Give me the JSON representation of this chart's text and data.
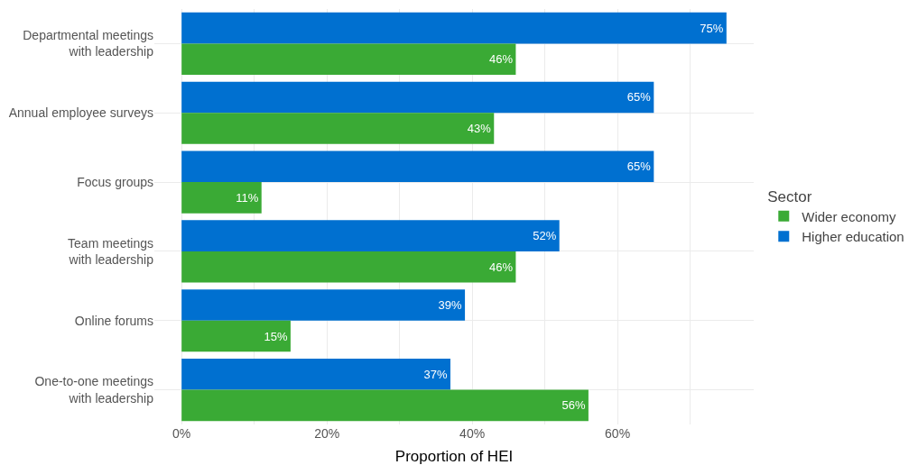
{
  "chart_data": {
    "type": "bar",
    "orientation": "horizontal",
    "categories": [
      "Departmental meetings\nwith leadership",
      "Annual employee surveys",
      "Focus groups",
      "Team meetings\nwith leadership",
      "Online forums",
      "One-to-one meetings\nwith leadership"
    ],
    "series": [
      {
        "name": "Wider economy",
        "color": "#3aaa35",
        "values": [
          46,
          43,
          11,
          46,
          15,
          56
        ],
        "value_labels": [
          "46%",
          "43%",
          "11%",
          "46%",
          "15%",
          "56%"
        ]
      },
      {
        "name": "Higher education",
        "color": "#0070d0",
        "values": [
          75,
          65,
          65,
          52,
          39,
          37
        ],
        "value_labels": [
          "75%",
          "65%",
          "65%",
          "52%",
          "39%",
          "37%"
        ]
      }
    ],
    "xlabel": "Proportion of HEI",
    "legend_title": "Sector",
    "xlim": [
      -3.75,
      78.75
    ],
    "xticks": [
      {
        "value": 0,
        "label": "0%"
      },
      {
        "value": 10,
        "label": null
      },
      {
        "value": 20,
        "label": "20%"
      },
      {
        "value": 30,
        "label": null
      },
      {
        "value": 40,
        "label": "40%"
      },
      {
        "value": 50,
        "label": null
      },
      {
        "value": 60,
        "label": "60%"
      },
      {
        "value": 70,
        "label": null
      }
    ],
    "grid": true,
    "legend": "right"
  }
}
